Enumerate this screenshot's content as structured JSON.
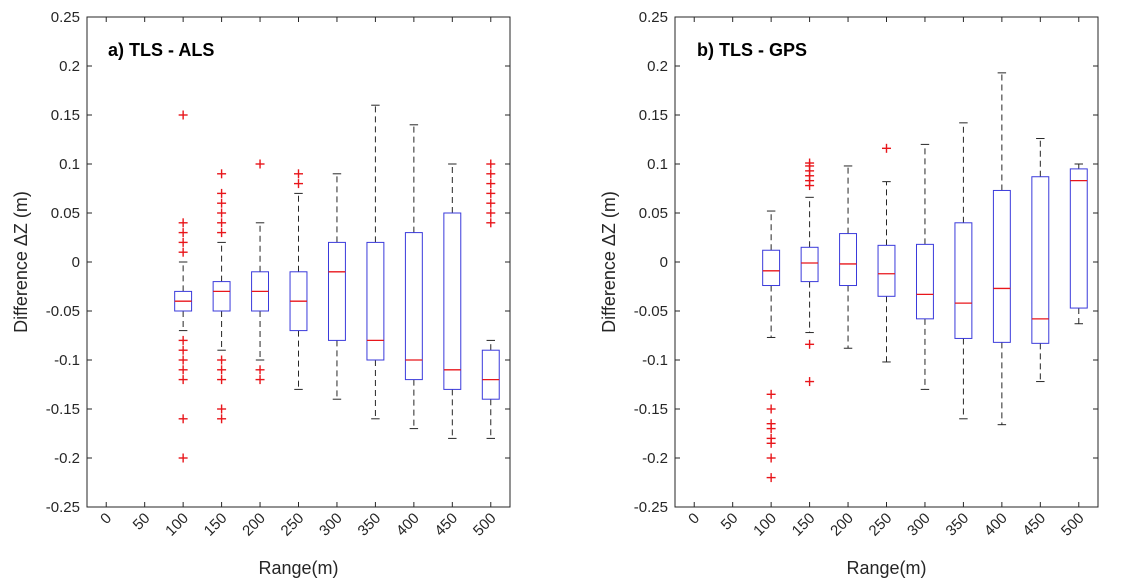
{
  "colors": {
    "box": "#3a3adb",
    "median": "#e8161b",
    "whisker": "#262626",
    "outlier": "#e8161b",
    "axes": "#262626"
  },
  "chart_data": [
    {
      "type": "box",
      "title": "a) TLS - ALS",
      "xlabel": "Range(m)",
      "ylabel": "Difference ΔZ (m)",
      "ylim": [
        -0.25,
        0.25
      ],
      "yticks": [
        "-0.25",
        "-0.2",
        "-0.15",
        "-0.1",
        "-0.05",
        "0",
        "0.05",
        "0.1",
        "0.15",
        "0.2",
        "0.25"
      ],
      "categories": [
        "0",
        "50",
        "100",
        "150",
        "200",
        "250",
        "300",
        "350",
        "400",
        "450",
        "500"
      ],
      "grid": false,
      "boxes": [
        {
          "x": "100",
          "q1": -0.05,
          "median": -0.04,
          "q3": -0.03,
          "whisker_low": -0.07,
          "whisker_high": 0.0,
          "outliers": [
            0.15,
            0.04,
            0.03,
            0.02,
            0.01,
            -0.08,
            -0.09,
            -0.1,
            -0.11,
            -0.12,
            -0.16,
            -0.2
          ]
        },
        {
          "x": "150",
          "q1": -0.05,
          "median": -0.03,
          "q3": -0.02,
          "whisker_low": -0.09,
          "whisker_high": 0.02,
          "outliers": [
            0.09,
            0.07,
            0.06,
            0.05,
            0.04,
            0.03,
            -0.1,
            -0.11,
            -0.12,
            -0.15,
            -0.16
          ]
        },
        {
          "x": "200",
          "q1": -0.05,
          "median": -0.03,
          "q3": -0.01,
          "whisker_low": -0.1,
          "whisker_high": 0.04,
          "outliers": [
            0.1,
            -0.11,
            -0.12
          ]
        },
        {
          "x": "250",
          "q1": -0.07,
          "median": -0.04,
          "q3": -0.01,
          "whisker_low": -0.13,
          "whisker_high": 0.07,
          "outliers": [
            0.09,
            0.08
          ]
        },
        {
          "x": "300",
          "q1": -0.08,
          "median": -0.01,
          "q3": 0.02,
          "whisker_low": -0.14,
          "whisker_high": 0.09,
          "outliers": []
        },
        {
          "x": "350",
          "q1": -0.1,
          "median": -0.08,
          "q3": 0.02,
          "whisker_low": -0.16,
          "whisker_high": 0.16,
          "outliers": []
        },
        {
          "x": "400",
          "q1": -0.12,
          "median": -0.1,
          "q3": 0.03,
          "whisker_low": -0.17,
          "whisker_high": 0.14,
          "outliers": []
        },
        {
          "x": "450",
          "q1": -0.13,
          "median": -0.11,
          "q3": 0.05,
          "whisker_low": -0.18,
          "whisker_high": 0.1,
          "outliers": []
        },
        {
          "x": "500",
          "q1": -0.14,
          "median": -0.12,
          "q3": -0.09,
          "whisker_low": -0.18,
          "whisker_high": -0.08,
          "outliers": [
            0.1,
            0.09,
            0.08,
            0.07,
            0.06,
            0.05,
            0.04
          ]
        }
      ]
    },
    {
      "type": "box",
      "title": "b) TLS - GPS",
      "xlabel": "Range(m)",
      "ylabel": "Difference ΔZ (m)",
      "ylim": [
        -0.25,
        0.25
      ],
      "yticks": [
        "-0.25",
        "-0.2",
        "-0.15",
        "-0.1",
        "-0.05",
        "0",
        "0.05",
        "0.1",
        "0.15",
        "0.2",
        "0.25"
      ],
      "categories": [
        "0",
        "50",
        "100",
        "150",
        "200",
        "250",
        "300",
        "350",
        "400",
        "450",
        "500"
      ],
      "grid": false,
      "boxes": [
        {
          "x": "100",
          "q1": -0.024,
          "median": -0.009,
          "q3": 0.012,
          "whisker_low": -0.077,
          "whisker_high": 0.052,
          "outliers": [
            -0.135,
            -0.15,
            -0.165,
            -0.17,
            -0.18,
            -0.185,
            -0.2,
            -0.22
          ]
        },
        {
          "x": "150",
          "q1": -0.02,
          "median": -0.001,
          "q3": 0.015,
          "whisker_low": -0.072,
          "whisker_high": 0.066,
          "outliers": [
            0.101,
            0.098,
            0.093,
            0.088,
            0.083,
            0.078,
            -0.084,
            -0.122
          ]
        },
        {
          "x": "200",
          "q1": -0.024,
          "median": -0.002,
          "q3": 0.029,
          "whisker_low": -0.088,
          "whisker_high": 0.098,
          "outliers": []
        },
        {
          "x": "250",
          "q1": -0.035,
          "median": -0.012,
          "q3": 0.017,
          "whisker_low": -0.102,
          "whisker_high": 0.082,
          "outliers": [
            0.116
          ]
        },
        {
          "x": "300",
          "q1": -0.058,
          "median": -0.033,
          "q3": 0.018,
          "whisker_low": -0.13,
          "whisker_high": 0.12,
          "outliers": []
        },
        {
          "x": "350",
          "q1": -0.078,
          "median": -0.042,
          "q3": 0.04,
          "whisker_low": -0.16,
          "whisker_high": 0.142,
          "outliers": []
        },
        {
          "x": "400",
          "q1": -0.082,
          "median": -0.027,
          "q3": 0.073,
          "whisker_low": -0.166,
          "whisker_high": 0.193,
          "outliers": []
        },
        {
          "x": "450",
          "q1": -0.083,
          "median": -0.058,
          "q3": 0.087,
          "whisker_low": -0.122,
          "whisker_high": 0.126,
          "outliers": []
        },
        {
          "x": "500",
          "q1": -0.047,
          "median": 0.083,
          "q3": 0.095,
          "whisker_low": -0.063,
          "whisker_high": 0.1,
          "outliers": []
        }
      ]
    }
  ]
}
